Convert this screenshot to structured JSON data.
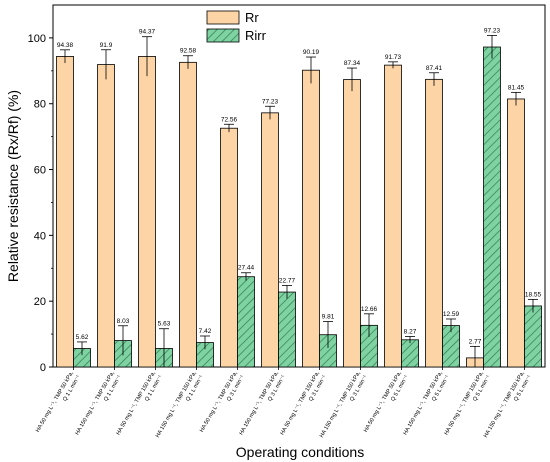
{
  "chart_data": {
    "type": "bar",
    "title": "",
    "xlabel": "Operating conditions",
    "ylabel": "Relative resistance (Rx/Rf) (%)",
    "ylim": [
      0,
      110
    ],
    "yticks": [
      0,
      20,
      40,
      60,
      80,
      100
    ],
    "legend": {
      "placement": "top-center"
    },
    "categories": [
      [
        "HA 50 mg L⁻¹, TMP 50 kPa,",
        "Q 1 L min⁻¹"
      ],
      [
        "HA 150 mg L⁻¹, TMP 50 kPa,",
        "Q 1 L min⁻¹"
      ],
      [
        "HA 50 mg L⁻¹, TMP 150 kPa,",
        "Q 1 L min⁻¹"
      ],
      [
        "HA 150 mg L⁻¹, TMP 150 kPa,",
        "Q 1 L min⁻¹"
      ],
      [
        "HA 50 mg L⁻¹, TMP 50 kPa,",
        "Q 3 L min⁻¹"
      ],
      [
        "HA 150 mg L⁻¹, TMP 50 kPa,",
        "Q 3 L min⁻¹"
      ],
      [
        "HA 50 mg L⁻¹, TMP 150 kPa,",
        "Q 3 L min⁻¹"
      ],
      [
        "HA 150 mg L⁻¹, TMP 150 kPa,",
        "Q 3 L min⁻¹"
      ],
      [
        "HA 50 mg L⁻¹, TMP 50 kPa,",
        "Q 5 L min⁻¹"
      ],
      [
        "HA 150 mg L⁻¹, TMP 50 kPa,",
        "Q 5 L min⁻¹"
      ],
      [
        "HA 50 mg L⁻¹, TMP 150 kPa,",
        "Q 5 L min⁻¹"
      ],
      [
        "HA 150 mg L⁻¹, TMP 150 kPa,",
        "Q 5 L min⁻¹"
      ]
    ],
    "series": [
      {
        "name": "Rr",
        "color": "#fdd4a6",
        "pattern": "solid",
        "values": [
          94.38,
          91.9,
          94.37,
          92.58,
          72.56,
          77.23,
          90.19,
          87.34,
          91.73,
          87.41,
          2.77,
          81.45
        ],
        "errors": [
          2.0,
          4.5,
          6.0,
          2.0,
          1.2,
          2.0,
          4.0,
          3.5,
          1.0,
          2.0,
          3.5,
          2.0
        ],
        "labels": [
          "94.38",
          "91.9",
          "94.37",
          "92.58",
          "72.56",
          "77.23",
          "90.19",
          "87.34",
          "91.73",
          "87.41",
          "2.77",
          "81.45"
        ]
      },
      {
        "name": "Rirr",
        "color": "#7fd3a2",
        "pattern": "hatched",
        "values": [
          5.62,
          8.03,
          5.63,
          7.42,
          27.44,
          22.77,
          9.81,
          12.66,
          8.27,
          12.59,
          97.23,
          18.55
        ],
        "errors": [
          2.0,
          4.5,
          6.0,
          2.0,
          1.2,
          2.0,
          4.0,
          3.5,
          1.0,
          2.0,
          3.5,
          2.0
        ],
        "labels": [
          "5.62",
          "8.03",
          "5.63",
          "7.42",
          "27.44",
          "22.77",
          "9.81",
          "12.66",
          "8.27",
          "12.59",
          "97.23",
          "18.55"
        ]
      }
    ]
  }
}
